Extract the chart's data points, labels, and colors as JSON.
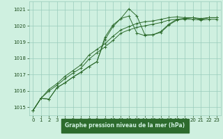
{
  "title": "Graphe pression niveau de la mer (hPa)",
  "bg_color": "#cff0e0",
  "plot_bg": "#cff0e0",
  "grid_color": "#99ccbb",
  "line_color": "#2d6b2d",
  "text_color": "#1a4a1a",
  "label_bg": "#2d6b2d",
  "label_fg": "#cff0e0",
  "xlim": [
    -0.5,
    23.5
  ],
  "ylim": [
    1014.5,
    1021.5
  ],
  "yticks": [
    1015,
    1016,
    1017,
    1018,
    1019,
    1020,
    1021
  ],
  "xticks": [
    0,
    1,
    2,
    3,
    4,
    5,
    6,
    7,
    8,
    9,
    10,
    11,
    12,
    13,
    14,
    15,
    16,
    17,
    18,
    19,
    20,
    21,
    22,
    23
  ],
  "series": [
    {
      "x": [
        0,
        1,
        2,
        3,
        4,
        5,
        6,
        7,
        8,
        9,
        10,
        11,
        12,
        13,
        14,
        15,
        16,
        17,
        18,
        19,
        20,
        21,
        22,
        23
      ],
      "y": [
        1014.8,
        1015.55,
        1015.5,
        1016.2,
        1016.5,
        1016.85,
        1017.15,
        1017.5,
        1017.8,
        1019.3,
        1020.05,
        1020.45,
        1021.05,
        1020.6,
        1019.45,
        1019.45,
        1019.6,
        1020.05,
        1020.35,
        1020.45,
        1020.5,
        1020.4,
        1020.5,
        1020.5
      ]
    },
    {
      "x": [
        0,
        1,
        2,
        3,
        4,
        5,
        6,
        7,
        8,
        9,
        10,
        11,
        12,
        13,
        14,
        15,
        16,
        17,
        18,
        19,
        20,
        21,
        22,
        23
      ],
      "y": [
        1014.8,
        1015.55,
        1015.5,
        1016.2,
        1016.5,
        1016.85,
        1017.15,
        1017.5,
        1017.8,
        1019.15,
        1019.95,
        1020.45,
        1020.6,
        1019.55,
        1019.4,
        1019.45,
        1019.65,
        1020.1,
        1020.4,
        1020.45,
        1020.5,
        1020.4,
        1020.5,
        1020.5
      ]
    },
    {
      "x": [
        0,
        1,
        2,
        3,
        4,
        5,
        6,
        7,
        8,
        9,
        10,
        11,
        12,
        13,
        14,
        15,
        16,
        17,
        18,
        19,
        20,
        21,
        22,
        23
      ],
      "y": [
        1014.8,
        1015.55,
        1016.1,
        1016.45,
        1016.9,
        1017.25,
        1017.6,
        1018.2,
        1018.55,
        1018.9,
        1019.35,
        1019.75,
        1019.95,
        1020.15,
        1020.25,
        1020.3,
        1020.4,
        1020.5,
        1020.55,
        1020.5,
        1020.5,
        1020.45,
        1020.5,
        1020.5
      ]
    },
    {
      "x": [
        0,
        1,
        2,
        3,
        4,
        5,
        6,
        7,
        8,
        9,
        10,
        11,
        12,
        13,
        14,
        15,
        16,
        17,
        18,
        19,
        20,
        21,
        22,
        23
      ],
      "y": [
        1014.8,
        1015.55,
        1016.0,
        1016.35,
        1016.75,
        1017.1,
        1017.4,
        1017.95,
        1018.35,
        1018.7,
        1019.1,
        1019.55,
        1019.75,
        1019.9,
        1020.0,
        1020.1,
        1020.2,
        1020.35,
        1020.4,
        1020.4,
        1020.4,
        1020.35,
        1020.4,
        1020.4
      ]
    }
  ]
}
